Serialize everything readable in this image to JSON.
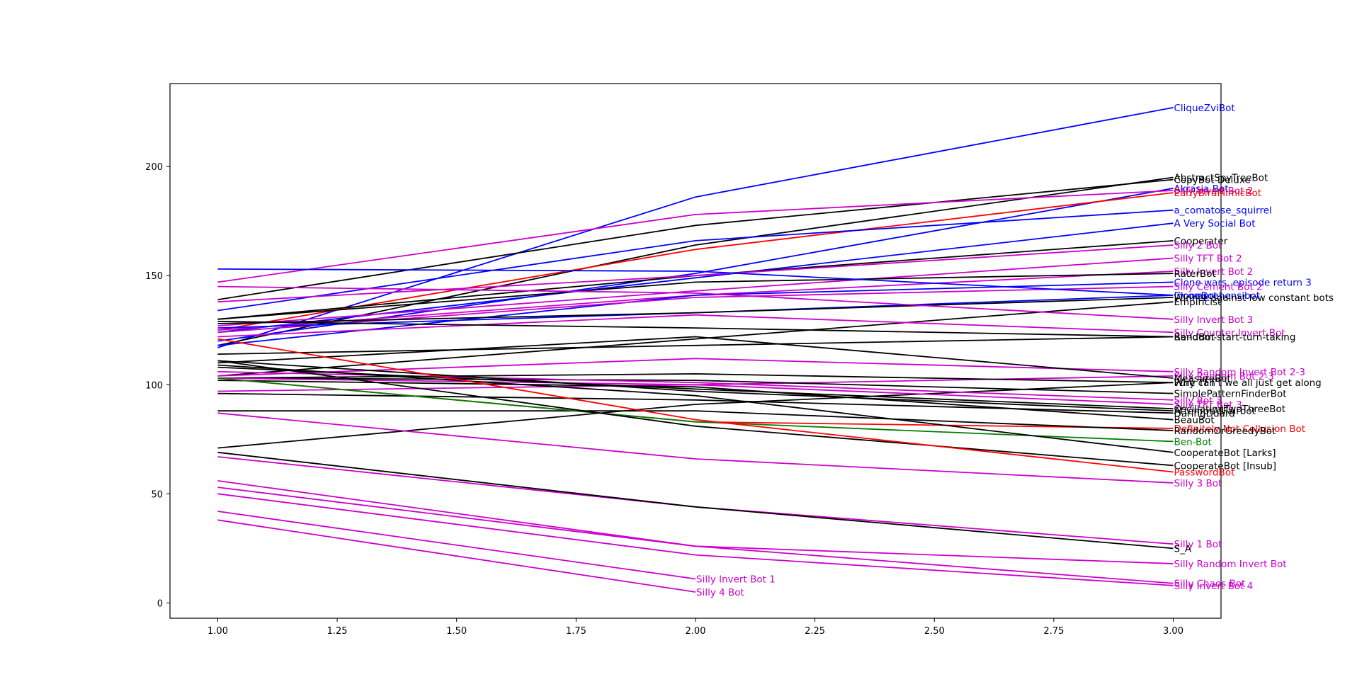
{
  "chart_data": {
    "type": "line",
    "title": "",
    "xlabel": "",
    "ylabel": "",
    "xlim": [
      0.9,
      3.1
    ],
    "ylim": [
      -7,
      238
    ],
    "x_ticks": [
      1.0,
      1.25,
      1.5,
      1.75,
      2.0,
      2.25,
      2.5,
      2.75,
      3.0
    ],
    "x_tick_labels": [
      "1.00",
      "1.25",
      "1.50",
      "1.75",
      "2.00",
      "2.25",
      "2.50",
      "2.75",
      "3.00"
    ],
    "y_ticks": [
      0,
      50,
      100,
      150,
      200
    ],
    "y_tick_labels": [
      "0",
      "50",
      "100",
      "150",
      "200"
    ],
    "grid": false,
    "legend": "none",
    "series": [
      {
        "name": "CliqueZviBot",
        "color": "#0000ff",
        "x": [
          1,
          2,
          3
        ],
        "values": [
          117,
          186,
          227
        ]
      },
      {
        "name": "AbstractSpyTreeBot",
        "color": "#000000",
        "x": [
          1,
          2,
          3
        ],
        "values": [
          118,
          164,
          195
        ]
      },
      {
        "name": "CopyBot Deluxe",
        "color": "#000000",
        "x": [
          1,
          2,
          3
        ],
        "values": [
          139,
          173,
          194
        ]
      },
      {
        "name": "Akrasia Bot",
        "color": "#0000ff",
        "x": [
          1,
          2,
          3
        ],
        "values": [
          120,
          151,
          190
        ]
      },
      {
        "name": "Silly Invert Bot 2",
        "color": "#cc00cc",
        "x": [
          1,
          2,
          3
        ],
        "values": [
          147,
          178,
          189
        ]
      },
      {
        "name": "EarlyBirdMimicBot",
        "color": "#ff0000",
        "x": [
          1,
          2,
          3
        ],
        "values": [
          125,
          162,
          188
        ]
      },
      {
        "name": "a_comatose_squirrel",
        "color": "#0000ff",
        "x": [
          1,
          2,
          3
        ],
        "values": [
          134,
          166,
          180
        ]
      },
      {
        "name": "A Very Social Bot",
        "color": "#0000ff",
        "x": [
          1,
          2,
          3
        ],
        "values": [
          124,
          149,
          174
        ]
      },
      {
        "name": "Cooperater",
        "color": "#000000",
        "x": [
          1,
          2,
          3
        ],
        "values": [
          130,
          150,
          166
        ]
      },
      {
        "name": "Silly 2 Bot",
        "color": "#cc00cc",
        "x": [
          1,
          2,
          3
        ],
        "values": [
          138,
          150,
          164
        ]
      },
      {
        "name": "Silly TFT Bot 2",
        "color": "#cc00cc",
        "x": [
          1,
          2,
          3
        ],
        "values": [
          127,
          143,
          158
        ]
      },
      {
        "name": "Silly Invert Bot 2",
        "color": "#cc00cc",
        "x": [
          1,
          2,
          3
        ],
        "values": [
          125,
          141,
          152
        ]
      },
      {
        "name": "RaterBot",
        "color": "#000000",
        "x": [
          1,
          2,
          3
        ],
        "values": [
          130,
          147,
          151
        ]
      },
      {
        "name": "Clone wars, episode return 3",
        "color": "#0000ff",
        "x": [
          1,
          2,
          3
        ],
        "values": [
          118,
          141,
          147
        ]
      },
      {
        "name": "Silly Cement Bot 2",
        "color": "#cc00cc",
        "x": [
          1,
          2,
          3
        ],
        "values": [
          124,
          140,
          145
        ]
      },
      {
        "name": "CloneBot",
        "color": "#0000ff",
        "x": [
          1,
          2,
          3
        ],
        "values": [
          153,
          152,
          141
        ]
      },
      {
        "name": "incomprehensibot",
        "color": "#0000ff",
        "x": [
          1,
          2,
          3
        ],
        "values": [
          126,
          133,
          141
        ]
      },
      {
        "name": "Winner against low constant bots",
        "color": "#000000",
        "x": [
          1,
          2,
          3
        ],
        "values": [
          128,
          133,
          140
        ]
      },
      {
        "name": "Empiricist",
        "color": "#000000",
        "x": [
          1,
          2,
          3
        ],
        "values": [
          104,
          121,
          138
        ]
      },
      {
        "name": "Silly Invert Bot 3",
        "color": "#cc00cc",
        "x": [
          1,
          2,
          3
        ],
        "values": [
          145,
          142,
          130
        ]
      },
      {
        "name": "Silly Counter Invert Bot",
        "color": "#cc00cc",
        "x": [
          1,
          2,
          3
        ],
        "values": [
          122,
          132,
          124
        ]
      },
      {
        "name": "Random-start-turn-taking",
        "color": "#000000",
        "x": [
          1,
          2,
          3
        ],
        "values": [
          114,
          118,
          122
        ]
      },
      {
        "name": "BendBot",
        "color": "#000000",
        "x": [
          1,
          2,
          3
        ],
        "values": [
          129,
          126,
          122
        ]
      },
      {
        "name": "Silly Random Invert Bot 2-3",
        "color": "#cc00cc",
        "x": [
          1,
          2,
          3
        ],
        "values": [
          104,
          112,
          106
        ]
      },
      {
        "name": "Silly Random Bot 2-3",
        "color": "#cc00cc",
        "x": [
          1,
          2,
          3
        ],
        "values": [
          97,
          100,
          104
        ]
      },
      {
        "name": "MeasureBot",
        "color": "#000000",
        "x": [
          1,
          2,
          3
        ],
        "values": [
          110,
          122,
          103
        ]
      },
      {
        "name": "Pure TFT",
        "color": "#000000",
        "x": [
          1,
          2,
          3
        ],
        "values": [
          103,
          105,
          101
        ]
      },
      {
        "name": "Why can't we all just get along",
        "color": "#000000",
        "x": [
          1,
          2,
          3
        ],
        "values": [
          71,
          91,
          101
        ]
      },
      {
        "name": "SimplePatternFinderBot",
        "color": "#000000",
        "x": [
          1,
          2,
          3
        ],
        "values": [
          103,
          102,
          96
        ]
      },
      {
        "name": "Silly Bot 3",
        "color": "#cc00cc",
        "x": [
          1,
          2,
          3
        ],
        "values": [
          106,
          101,
          93
        ]
      },
      {
        "name": "Silly TFT Bot 3",
        "color": "#cc00cc",
        "x": [
          1,
          2,
          3
        ],
        "values": [
          103,
          100,
          91
        ]
      },
      {
        "name": "OscillatingTwoThreeBot",
        "color": "#000000",
        "x": [
          1,
          2,
          3
        ],
        "values": [
          108,
          98,
          89
        ]
      },
      {
        "name": "AttemptAtFairbot",
        "color": "#000000",
        "x": [
          1,
          2,
          3
        ],
        "values": [
          111,
          97,
          88
        ]
      },
      {
        "name": "DaringDuard",
        "color": "#000000",
        "x": [
          1,
          2,
          3
        ],
        "values": [
          96,
          93,
          87
        ]
      },
      {
        "name": "BeauBot",
        "color": "#000000",
        "x": [
          1,
          2,
          3
        ],
        "values": [
          102,
          99,
          84
        ]
      },
      {
        "name": "Definitely Not Collusion Bot",
        "color": "#ff0000",
        "x": [
          1,
          2,
          3
        ],
        "values": [
          103,
          83,
          80
        ]
      },
      {
        "name": "RandomOrGreedyBot",
        "color": "#000000",
        "x": [
          1,
          2,
          3
        ],
        "values": [
          88,
          88,
          79
        ]
      },
      {
        "name": "Ben-Bot",
        "color": "#008000",
        "x": [
          1,
          2,
          3
        ],
        "values": [
          103,
          83,
          74
        ]
      },
      {
        "name": "CooperateBot [Larks]",
        "color": "#000000",
        "x": [
          1,
          2,
          3
        ],
        "values": [
          109,
          95,
          69
        ]
      },
      {
        "name": "CooperateBot [Insub]",
        "color": "#000000",
        "x": [
          1,
          2,
          3
        ],
        "values": [
          111,
          81,
          63
        ]
      },
      {
        "name": "PasswordBot",
        "color": "#ff0000",
        "x": [
          1,
          2,
          3
        ],
        "values": [
          121,
          84,
          60
        ]
      },
      {
        "name": "Silly 3 Bot",
        "color": "#cc00cc",
        "x": [
          1,
          2,
          3
        ],
        "values": [
          87,
          66,
          55
        ]
      },
      {
        "name": "Silly 1 Bot",
        "color": "#cc00cc",
        "x": [
          1,
          2,
          3
        ],
        "values": [
          67,
          44,
          27
        ]
      },
      {
        "name": "S_A",
        "color": "#000000",
        "x": [
          1,
          2,
          3
        ],
        "values": [
          69,
          44,
          25
        ]
      },
      {
        "name": "Silly Random Invert Bot",
        "color": "#cc00cc",
        "x": [
          1,
          2,
          3
        ],
        "values": [
          53,
          26,
          18
        ]
      },
      {
        "name": "Silly Chaos Bot",
        "color": "#cc00cc",
        "x": [
          1,
          2,
          3
        ],
        "values": [
          56,
          26,
          9
        ]
      },
      {
        "name": "Silly Invert Bot 4",
        "color": "#cc00cc",
        "x": [
          1,
          2,
          3
        ],
        "values": [
          50,
          22,
          8
        ]
      },
      {
        "name": "Silly Invert Bot 1",
        "color": "#cc00cc",
        "x": [
          1,
          2
        ],
        "values": [
          42,
          11
        ]
      },
      {
        "name": "Silly 4 Bot",
        "color": "#cc00cc",
        "x": [
          1,
          2
        ],
        "values": [
          38,
          5
        ]
      }
    ]
  }
}
